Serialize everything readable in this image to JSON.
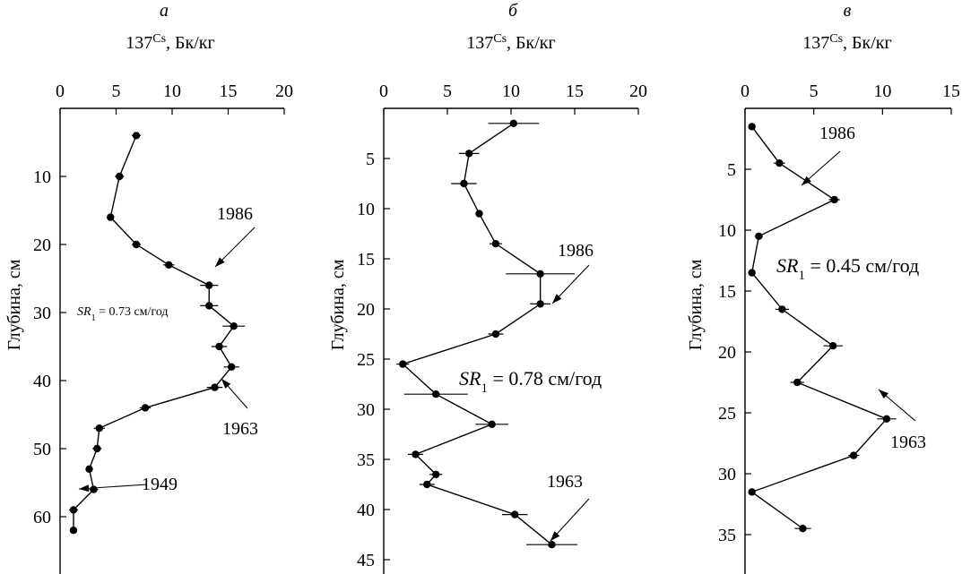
{
  "panels": [
    {
      "letter": "а",
      "x_axis_title": "137^Cs, Бк/кг",
      "y_axis_title": "Глубина, см",
      "sr_text": "SR₁ = 0.73 см/год",
      "xlim": [
        0,
        20
      ],
      "xticks": [
        0,
        5,
        10,
        15,
        20
      ],
      "ylim": [
        0,
        66
      ],
      "yticks": [
        10,
        20,
        30,
        40,
        50,
        60
      ]
    },
    {
      "letter": "б",
      "x_axis_title": "137^Cs, Бк/кг",
      "y_axis_title": "Глубина, см",
      "sr_text": "SR₁ = 0.78 см/год",
      "xlim": [
        0,
        20
      ],
      "xticks": [
        0,
        5,
        10,
        15,
        20
      ],
      "ylim": [
        0,
        46
      ],
      "yticks": [
        5,
        10,
        15,
        20,
        25,
        30,
        35,
        40,
        45
      ]
    },
    {
      "letter": "в",
      "x_axis_title": "137^Cs, Бк/кг",
      "y_axis_title": "Глубина, см",
      "sr_text": "SR₁ = 0.45 см/год",
      "xlim": [
        0,
        15
      ],
      "xticks": [
        0,
        5,
        10,
        15
      ],
      "ylim": [
        0,
        40
      ],
      "yticks": [
        5,
        10,
        15,
        20,
        25,
        30,
        35
      ]
    }
  ],
  "chart_data": [
    {
      "type": "line",
      "title": "а",
      "xlabel": "137Cs, Бк/кг",
      "ylabel": "Глубина, см",
      "xlim": [
        0,
        20
      ],
      "ylim": [
        0,
        66
      ],
      "y_inverted": true,
      "x_axis_position": "top",
      "series": [
        {
          "x": [
            6.8,
            5.3,
            4.5,
            6.8,
            9.7,
            13.3,
            13.3,
            15.5,
            14.2,
            15.3,
            13.8,
            7.6,
            3.5,
            3.3,
            2.6,
            3.0,
            1.2,
            1.2
          ],
          "y": [
            4,
            10,
            16,
            20,
            23,
            26,
            29,
            32,
            35,
            38,
            41,
            44,
            47,
            50,
            53,
            56,
            59,
            62
          ],
          "xerr": [
            0.4,
            0.4,
            0,
            0.4,
            0.5,
            0.8,
            0.8,
            1.0,
            0.7,
            0.7,
            0.7,
            0.5,
            0.5,
            0.4,
            0,
            0.4,
            0.4,
            0
          ]
        }
      ],
      "annotations": [
        {
          "text": "1986",
          "x": 13.3,
          "y": 26
        },
        {
          "text": "1963",
          "x": 13.8,
          "y": 41
        },
        {
          "text": "1949",
          "x": 1.2,
          "y": 59
        },
        {
          "text": "SR₁ = 0.73 см/год"
        }
      ]
    },
    {
      "type": "line",
      "title": "б",
      "xlabel": "137Cs, Бк/кг",
      "ylabel": "Глубина, см",
      "xlim": [
        0,
        20
      ],
      "ylim": [
        0,
        46
      ],
      "y_inverted": true,
      "x_axis_position": "top",
      "series": [
        {
          "x": [
            10.2,
            6.7,
            6.3,
            7.5,
            8.8,
            12.3,
            12.3,
            8.8,
            1.5,
            4.1,
            8.5,
            2.5,
            4.1,
            3.4,
            10.3,
            13.2
          ],
          "y": [
            1.5,
            4.5,
            7.5,
            10.5,
            13.5,
            16.5,
            19.5,
            22.5,
            25.5,
            28.5,
            31.5,
            34.5,
            36.5,
            37.5,
            40.5,
            43.5
          ],
          "xerr": [
            2.0,
            0.8,
            1.0,
            0,
            0.5,
            2.7,
            0.8,
            0.6,
            0.5,
            2.5,
            1.3,
            0.6,
            0.5,
            0.6,
            1.0,
            2.0
          ]
        }
      ],
      "annotations": [
        {
          "text": "1986",
          "x": 12.3,
          "y": 19.5
        },
        {
          "text": "1963",
          "x": 13.2,
          "y": 43.5
        },
        {
          "text": "SR₁ = 0.78 см/год"
        }
      ]
    },
    {
      "type": "line",
      "title": "в",
      "xlabel": "137Cs, Бк/кг",
      "ylabel": "Глубина, см",
      "xlim": [
        0,
        15
      ],
      "ylim": [
        0,
        40
      ],
      "y_inverted": true,
      "x_axis_position": "top",
      "series": [
        {
          "x": [
            0.5,
            2.5,
            6.5,
            1.0,
            0.5,
            2.7,
            6.4,
            3.8,
            10.3,
            7.9,
            0.5,
            4.2
          ],
          "y": [
            1.5,
            4.5,
            7.5,
            10.5,
            13.5,
            16.5,
            19.5,
            22.5,
            25.5,
            28.5,
            31.5,
            34.5
          ],
          "xerr": [
            0,
            0.4,
            0.4,
            0.3,
            0,
            0.5,
            0.7,
            0.5,
            0.7,
            0.4,
            0,
            0.6
          ]
        }
      ],
      "annotations": [
        {
          "text": "1986",
          "x": 6.5,
          "y": 7.5
        },
        {
          "text": "1963",
          "x": 10.3,
          "y": 25.5
        },
        {
          "text": "SR₁ = 0.45 см/год"
        }
      ]
    }
  ]
}
